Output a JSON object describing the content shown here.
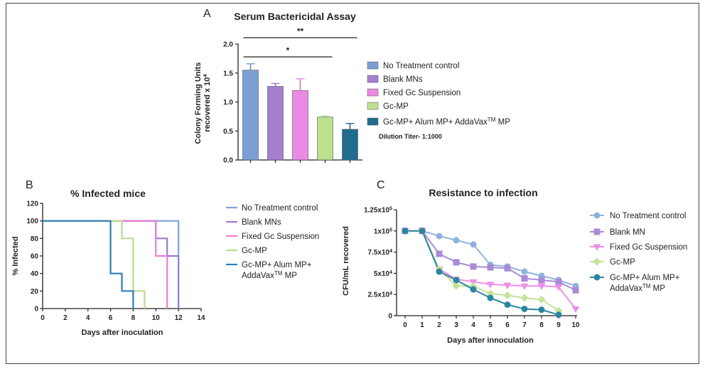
{
  "chart_data": [
    {
      "panel": "A",
      "type": "bar",
      "title": "Serum Bactericidal Assay",
      "ylabel_line1": "Colony Forming Units",
      "ylabel_line2": "recovered x 10",
      "ylabel_sup": "4",
      "ylim": [
        0,
        2.0
      ],
      "yticks": [
        "0.0",
        "0.5",
        "1.0",
        "1.5",
        "2.0"
      ],
      "series": [
        {
          "name": "No Treatment control",
          "value": 1.55,
          "error": 0.11,
          "color": "#7b9fd4"
        },
        {
          "name": "Blank MNs",
          "value": 1.27,
          "error": 0.05,
          "color": "#a57fd0"
        },
        {
          "name": "Fixed Gc Suspension",
          "value": 1.2,
          "error": 0.2,
          "color": "#e98ae4"
        },
        {
          "name": "Gc-MP",
          "value": 0.74,
          "error": 0.02,
          "color": "#bde08e"
        },
        {
          "name": "Gc-MP+ Alum MP+ AddaVax",
          "name_sup": "TM",
          "name_tail": " MP",
          "value": 0.53,
          "error": 0.1,
          "color": "#1f6c8e"
        }
      ],
      "significance": [
        {
          "label": "**",
          "from": 0,
          "to": 4
        },
        {
          "label": "*",
          "from": 0,
          "to": 3
        }
      ],
      "note": "Dilution Titer- 1:1000"
    },
    {
      "panel": "B",
      "type": "line",
      "title": "% Infected mice",
      "xlabel": "Days after inoculation",
      "ylabel": "% Infected",
      "xlim": [
        0,
        14
      ],
      "ylim": [
        0,
        120
      ],
      "xticks": [
        "0",
        "2",
        "4",
        "6",
        "8",
        "10",
        "12",
        "14"
      ],
      "yticks": [
        "0",
        "20",
        "40",
        "60",
        "80",
        "100",
        "120"
      ],
      "series": [
        {
          "name": "No Treatment control",
          "color": "#7fa3d8",
          "x": [
            0,
            12,
            12
          ],
          "y": [
            100,
            100,
            0
          ]
        },
        {
          "name": "Blank MNs",
          "color": "#9b7bcf",
          "x": [
            0,
            10,
            10,
            11,
            11,
            12,
            12
          ],
          "y": [
            100,
            100,
            80,
            80,
            60,
            60,
            0
          ]
        },
        {
          "name": "Fixed Gc Suspension",
          "color": "#ec7fd2",
          "x": [
            0,
            10,
            10,
            11,
            11
          ],
          "y": [
            100,
            100,
            60,
            60,
            0
          ]
        },
        {
          "name": "Gc-MP",
          "color": "#b9dd8c",
          "x": [
            0,
            7,
            7,
            8,
            8,
            9,
            9
          ],
          "y": [
            100,
            100,
            80,
            80,
            20,
            20,
            0
          ]
        },
        {
          "name": "Gc-MP+ Alum MP+",
          "name_line2": "AddaVax",
          "name_sup": "TM",
          "name_tail": " MP",
          "color": "#2a7fb8",
          "x": [
            0,
            6,
            6,
            7,
            7,
            8,
            8
          ],
          "y": [
            100,
            100,
            40,
            40,
            20,
            20,
            0
          ]
        }
      ]
    },
    {
      "panel": "C",
      "type": "line",
      "title": "Resistance to infection",
      "xlabel": "Days after innoculation",
      "ylabel": "CFU/mL recovered",
      "xlim": [
        0,
        10
      ],
      "ylim": [
        0,
        125000
      ],
      "xticks": [
        "0",
        "1",
        "2",
        "3",
        "4",
        "5",
        "6",
        "7",
        "8",
        "9",
        "10"
      ],
      "yticks": [
        {
          "value": 0,
          "mant": "0",
          "exp": ""
        },
        {
          "value": 25000,
          "mant": "2.5x10",
          "exp": "4"
        },
        {
          "value": 50000,
          "mant": "5x10",
          "exp": "4"
        },
        {
          "value": 75000,
          "mant": "7.5x10",
          "exp": "4"
        },
        {
          "value": 100000,
          "mant": "1x10",
          "exp": "5"
        },
        {
          "value": 125000,
          "mant": "1.25x10",
          "exp": "5"
        }
      ],
      "x": [
        0,
        1,
        2,
        3,
        4,
        5,
        6,
        7,
        8,
        9,
        10
      ],
      "series": [
        {
          "name": "No Treatment control",
          "marker": "circle",
          "color": "#8fb2e0",
          "values": [
            100000,
            100000,
            94000,
            89000,
            84000,
            60000,
            58000,
            52000,
            47000,
            42000,
            35000
          ]
        },
        {
          "name": "Blank MN",
          "marker": "square",
          "color": "#a98bd6",
          "values": [
            100000,
            100000,
            73000,
            63000,
            58000,
            57000,
            56000,
            44000,
            42000,
            40000,
            30000
          ]
        },
        {
          "name": "Fixed Gc Suspension",
          "marker": "triangle-down",
          "color": "#ee8ee8",
          "values": [
            100000,
            100000,
            55000,
            43000,
            40000,
            37000,
            36000,
            35000,
            35000,
            34000,
            8000
          ]
        },
        {
          "name": "Gc-MP",
          "marker": "diamond",
          "color": "#c5e39a",
          "values": [
            100000,
            100000,
            55000,
            35000,
            35000,
            26000,
            24000,
            21000,
            19000,
            6000,
            null
          ]
        },
        {
          "name": "Gc-MP+ Alum MP+",
          "name_line2": "AddaVax",
          "name_sup": "TM",
          "name_tail": " MP",
          "marker": "circle",
          "color": "#2b86a0",
          "values": [
            100000,
            100000,
            52000,
            42000,
            31000,
            21000,
            13000,
            8000,
            7000,
            1000,
            null
          ]
        }
      ]
    }
  ]
}
